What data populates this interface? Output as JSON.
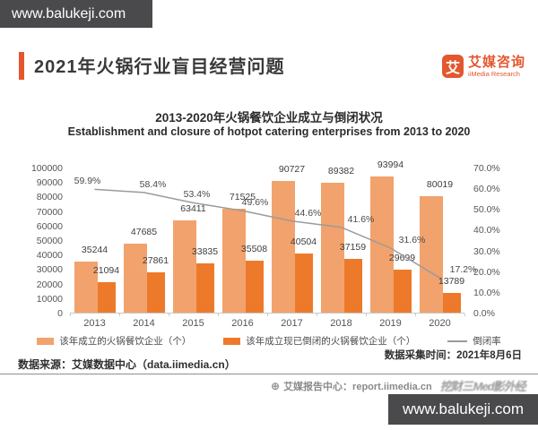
{
  "watermarks": {
    "top_text": "www.balukeji.com",
    "bottom_text": "www.balukeji.com"
  },
  "header": {
    "title": "2021年火锅行业盲目经营问题",
    "logo_glyph": "艾",
    "logo_cn": "艾媒咨询",
    "logo_en": "iiMedia Research"
  },
  "chart_data": {
    "type": "bar",
    "title": "2013-2020年火锅餐饮企业成立与倒闭状况",
    "subtitle": "Establishment and closure of hotpot catering enterprises from 2013 to 2020",
    "categories": [
      "2013",
      "2014",
      "2015",
      "2016",
      "2017",
      "2018",
      "2019",
      "2020"
    ],
    "series": [
      {
        "name": "该年成立的火锅餐饮企业（个）",
        "kind": "bar",
        "color": "#F2A26C",
        "values": [
          35244,
          47685,
          63411,
          71525,
          90727,
          89382,
          93994,
          80019
        ]
      },
      {
        "name": "该年成立现已倒闭的火锅餐饮企业（个）",
        "kind": "bar",
        "color": "#ED7A2B",
        "values": [
          21094,
          27861,
          33835,
          35508,
          40504,
          37159,
          29699,
          13789
        ]
      },
      {
        "name": "倒闭率",
        "kind": "line",
        "color": "#9B9B9B",
        "values": [
          59.9,
          58.4,
          53.4,
          49.6,
          44.6,
          41.6,
          31.6,
          17.2
        ],
        "labels": [
          "59.9%",
          "58.4%",
          "53.4%",
          "49.6%",
          "44.6%",
          "41.6%",
          "31.6%",
          "17.2%"
        ]
      }
    ],
    "y_left": {
      "min": 0,
      "max": 100000,
      "step": 10000,
      "ticks": [
        "100000",
        "90000",
        "80000",
        "70000",
        "60000",
        "50000",
        "40000",
        "30000",
        "20000",
        "10000",
        "0"
      ]
    },
    "y_right": {
      "min": 0,
      "max": 70,
      "ticks": [
        "70.0%",
        "60.0%",
        "50.0%",
        "40.0%",
        "30.0%",
        "20.0%",
        "10.0%",
        "0.0%"
      ]
    },
    "grid": false,
    "legend_position": "bottom"
  },
  "footer": {
    "collect_time": "数据采集时间：2021年8月6日",
    "source": "数据来源：艾媒数据中心（data.iimedia.cn）",
    "report_center": "艾媒报告中心：report.iimedia.cn",
    "garbled_watermark": "挖财三Med影外经"
  },
  "colors": {
    "accent": "#E4572E",
    "bar_light": "#F2A26C",
    "bar_dark": "#ED7A2B",
    "line": "#9B9B9B",
    "watermark_bg": "#4A4A4C"
  }
}
